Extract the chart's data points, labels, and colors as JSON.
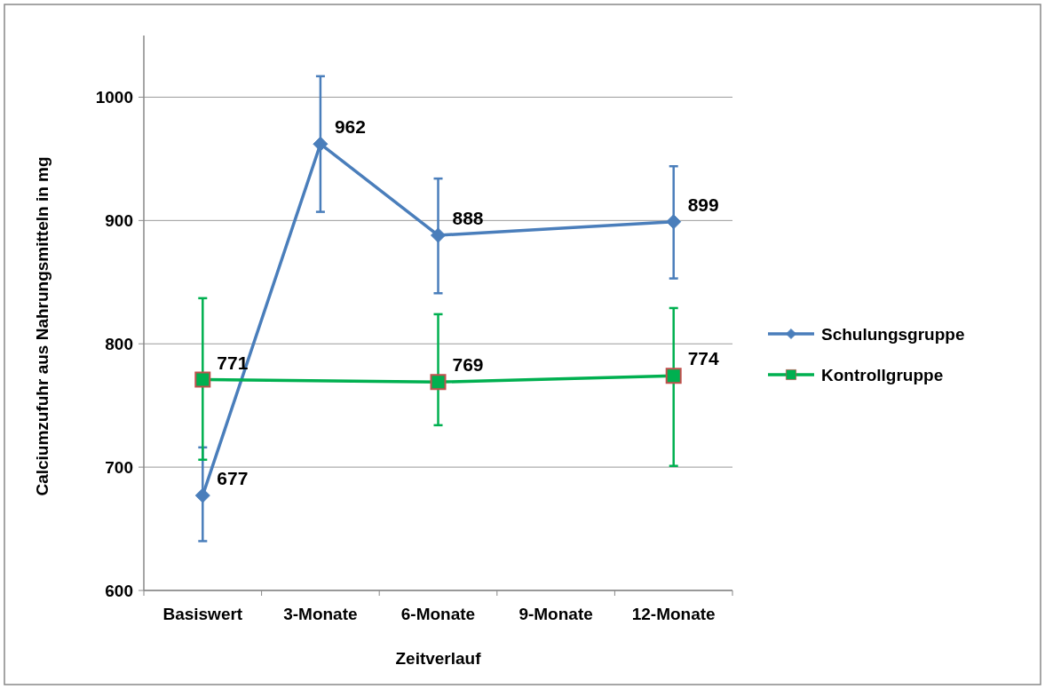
{
  "chart_data": {
    "type": "line",
    "xlabel": "Zeitverlauf",
    "ylabel": "Calciumzufuhr aus Nahrungsmitteln in mg",
    "categories": [
      "Basiswert",
      "3-Monate",
      "6-Monate",
      "9-Monate",
      "12-Monate"
    ],
    "series": [
      {
        "name": "Schulungsgruppe",
        "color": "#4a7ebb",
        "marker": "diamond",
        "values": [
          677,
          962,
          888,
          null,
          899
        ],
        "errors": [
          [
            640,
            716
          ],
          [
            907,
            1017
          ],
          [
            841,
            934
          ],
          null,
          [
            853,
            944
          ]
        ]
      },
      {
        "name": "Kontrollgruppe",
        "color": "#00b050",
        "marker": "square",
        "values": [
          771,
          null,
          769,
          null,
          774
        ],
        "errors": [
          [
            706,
            837
          ],
          null,
          [
            734,
            824
          ],
          null,
          [
            701,
            829
          ]
        ]
      }
    ],
    "ylim": [
      600,
      1050
    ],
    "yticks": [
      600,
      700,
      800,
      900,
      1000
    ],
    "grid": "y",
    "legend": "right",
    "data_labels": true
  }
}
